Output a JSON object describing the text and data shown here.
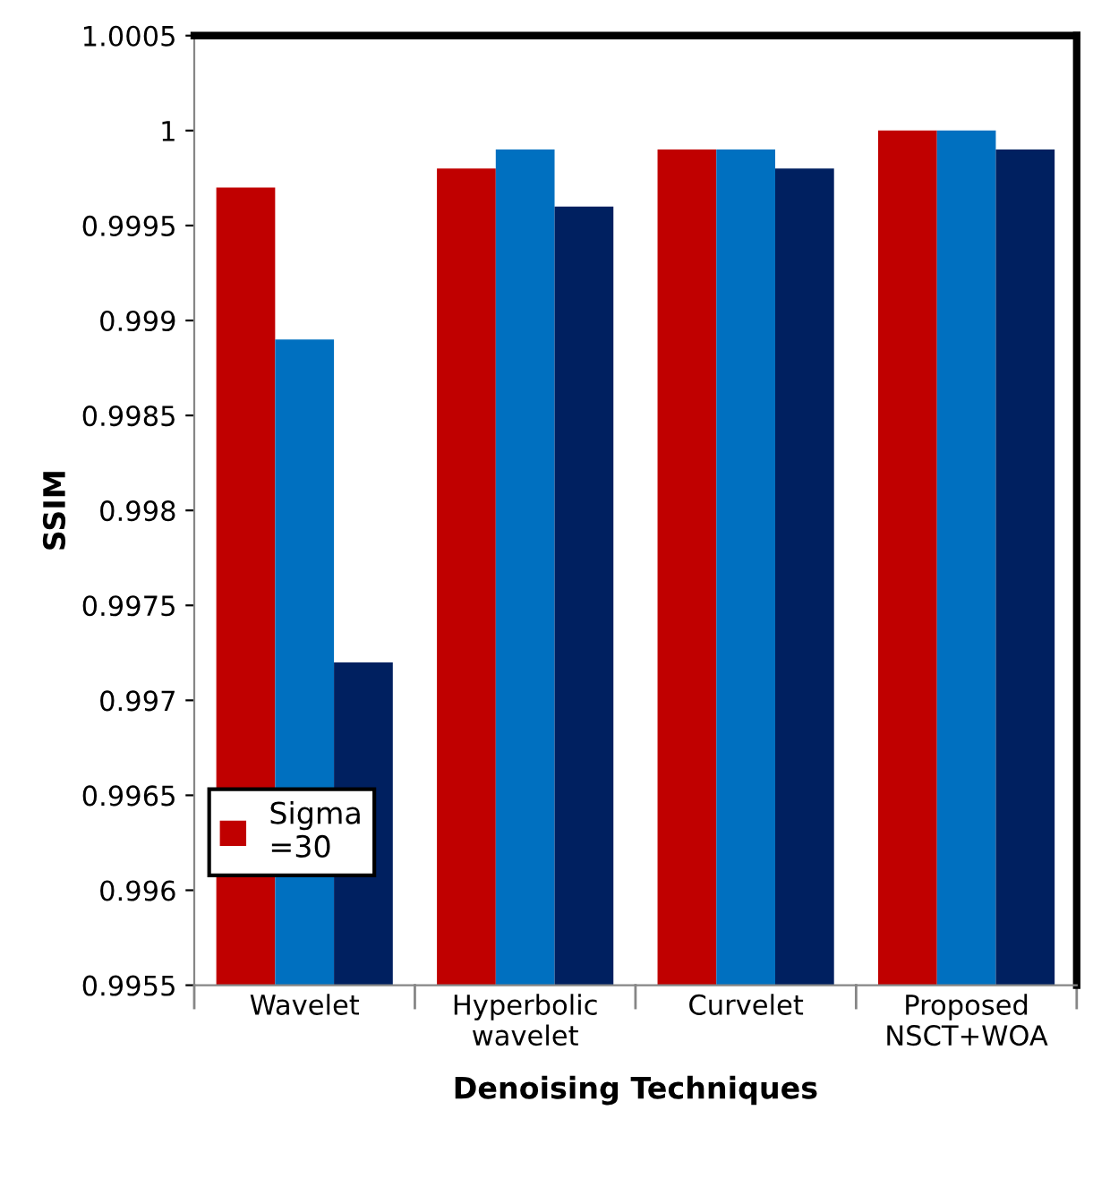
{
  "chart_data": {
    "type": "bar",
    "xlabel": "Denoising Techniques",
    "ylabel": "SSIM",
    "categories": [
      "Wavelet",
      "Hyperbolic wavelet",
      "Curvelet",
      "Proposed NSCT+WOA"
    ],
    "series": [
      {
        "name": "Sigma =30",
        "color": "#c00000",
        "values": [
          0.9997,
          0.9998,
          0.9999,
          1.0
        ]
      },
      {
        "color": "#0070c0",
        "values": [
          0.9989,
          0.9999,
          0.9999,
          1.0
        ]
      },
      {
        "color": "#002060",
        "values": [
          0.9972,
          0.9996,
          0.9998,
          0.9999
        ]
      }
    ],
    "ylim": [
      0.9955,
      1.0005
    ],
    "yticks": [
      0.9955,
      0.996,
      0.9965,
      0.997,
      0.9975,
      0.998,
      0.9985,
      0.999,
      0.9995,
      1,
      1.0005
    ],
    "grid": false,
    "legend": "bottom left"
  }
}
